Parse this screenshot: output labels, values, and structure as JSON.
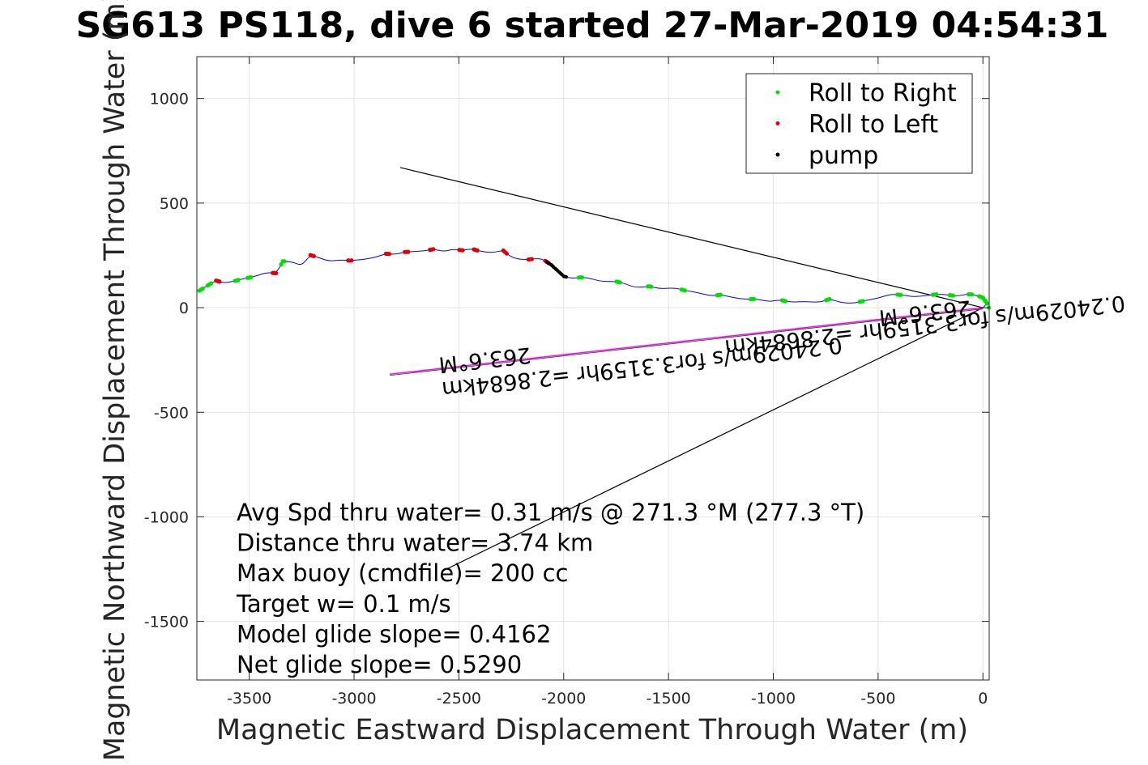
{
  "chart_data": {
    "type": "scatter",
    "title": "SG613 PS118, dive 6 started 27-Mar-2019 04:54:31",
    "xlabel": "Magnetic Eastward Displacement Through Water (m)",
    "ylabel": "Magnetic Northward Displacement Through Water (m)",
    "xlim": [
      -3750,
      30
    ],
    "ylim": [
      -1780,
      1200
    ],
    "xticks": [
      -3500,
      -3000,
      -2500,
      -2000,
      -1500,
      -1000,
      -500,
      0
    ],
    "yticks": [
      -1500,
      -1000,
      -500,
      0,
      500,
      1000
    ],
    "grid": true,
    "legend_position": "top-right",
    "colors": {
      "track": "#0000ff",
      "roll_right": "#00e000",
      "roll_left": "#e00000",
      "pump": "#000000",
      "heading_line": "#000000",
      "current_line": "#ff00ff"
    },
    "legend": [
      {
        "label": "Roll to Right",
        "color": "#00e000"
      },
      {
        "label": "Roll to Left",
        "color": "#e00000"
      },
      {
        "label": "pump",
        "color": "#000000"
      }
    ],
    "track": [
      [
        -3740,
        80
      ],
      [
        -3700,
        105
      ],
      [
        -3660,
        130
      ],
      [
        -3620,
        118
      ],
      [
        -3580,
        125
      ],
      [
        -3530,
        138
      ],
      [
        -3470,
        150
      ],
      [
        -3420,
        168
      ],
      [
        -3370,
        165
      ],
      [
        -3340,
        222
      ],
      [
        -3290,
        218
      ],
      [
        -3250,
        200
      ],
      [
        -3210,
        252
      ],
      [
        -3170,
        240
      ],
      [
        -3120,
        222
      ],
      [
        -3060,
        228
      ],
      [
        -3020,
        225
      ],
      [
        -2960,
        230
      ],
      [
        -2900,
        240
      ],
      [
        -2850,
        258
      ],
      [
        -2800,
        255
      ],
      [
        -2760,
        266
      ],
      [
        -2720,
        268
      ],
      [
        -2660,
        272
      ],
      [
        -2620,
        280
      ],
      [
        -2570,
        268
      ],
      [
        -2530,
        280
      ],
      [
        -2480,
        274
      ],
      [
        -2440,
        282
      ],
      [
        -2400,
        270
      ],
      [
        -2340,
        262
      ],
      [
        -2290,
        275
      ],
      [
        -2260,
        248
      ],
      [
        -2220,
        232
      ],
      [
        -2170,
        230
      ],
      [
        -2130,
        235
      ],
      [
        -2100,
        232
      ],
      [
        -2060,
        205
      ],
      [
        -2030,
        178
      ],
      [
        -2000,
        150
      ],
      [
        -1960,
        140
      ],
      [
        -1920,
        145
      ],
      [
        -1880,
        142
      ],
      [
        -1820,
        125
      ],
      [
        -1750,
        125
      ],
      [
        -1710,
        116
      ],
      [
        -1660,
        96
      ],
      [
        -1590,
        102
      ],
      [
        -1540,
        90
      ],
      [
        -1470,
        95
      ],
      [
        -1420,
        82
      ],
      [
        -1360,
        72
      ],
      [
        -1300,
        56
      ],
      [
        -1250,
        62
      ],
      [
        -1190,
        48
      ],
      [
        -1130,
        40
      ],
      [
        -1080,
        42
      ],
      [
        -1020,
        28
      ],
      [
        -970,
        38
      ],
      [
        -920,
        26
      ],
      [
        -850,
        30
      ],
      [
        -780,
        25
      ],
      [
        -730,
        42
      ],
      [
        -680,
        25
      ],
      [
        -620,
        20
      ],
      [
        -560,
        35
      ],
      [
        -500,
        45
      ],
      [
        -440,
        65
      ],
      [
        -380,
        60
      ],
      [
        -330,
        52
      ],
      [
        -270,
        58
      ],
      [
        -210,
        65
      ],
      [
        -160,
        60
      ],
      [
        -120,
        55
      ],
      [
        -80,
        65
      ],
      [
        -40,
        62
      ],
      [
        0,
        48
      ],
      [
        20,
        20
      ],
      [
        0,
        0
      ]
    ],
    "roll_right_x": [
      -3730,
      -3690,
      -3560,
      -3500,
      -3340,
      -1920,
      -1740,
      -1590,
      -1430,
      -1260,
      -1100,
      -950,
      -740,
      -580,
      -400,
      -230,
      -150,
      -60,
      -10,
      10,
      20
    ],
    "roll_left_x": [
      -3650,
      -3380,
      -3200,
      -3020,
      -2840,
      -2750,
      -2630,
      -2490,
      -2420,
      -2280,
      -2160,
      -2080
    ],
    "pump_x": [
      -2080,
      -2060,
      -2040,
      -2020,
      -2000
    ],
    "heading_line": [
      [
        -2780,
        670
      ],
      [
        0,
        0
      ],
      [
        -2580,
        -1260
      ]
    ],
    "current_line": [
      [
        -2830,
        -318
      ],
      [
        0,
        0
      ]
    ],
    "annotations": [
      {
        "text": "263.6°M",
        "x": -2380,
        "y": -215,
        "angle": 173.6
      },
      {
        "text": "0.24029m/s for3.3159hr =2.8684km",
        "x": -1630,
        "y": -250,
        "angle": 173.6
      },
      {
        "text": "263.6°M",
        "x": -280,
        "y": 10,
        "angle": 173.6
      },
      {
        "text": "0.24029m/s for3.3159hr =2.8684km",
        "x": -280,
        "y": -50,
        "angle": 173.6
      }
    ],
    "stats": [
      "Avg Spd thru water=  0.31 m/s @ 271.3 °M (277.3 °T)",
      "Distance thru water=  3.74 km",
      "Max buoy (cmdfile)= 200 cc",
      "Target w= 0.1 m/s",
      "Model glide slope= 0.4162",
      "Net glide slope= 0.5290"
    ]
  }
}
